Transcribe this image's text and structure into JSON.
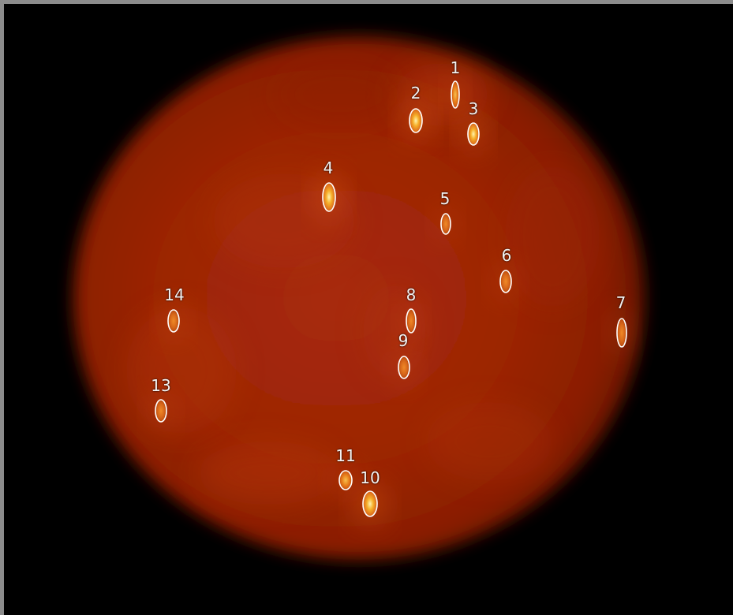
{
  "image": {
    "subject": "thermal-disk",
    "colors": {
      "background": "#000000",
      "frame": "#8c8c8c",
      "disk_center": "#a82a08",
      "disk_mid": "#9a2306",
      "disk_edge": "#6a1504",
      "hotspot_core": "#fff2a0",
      "hotspot_mid": "#f2a020",
      "hotspot_outer": "#d85a10",
      "outline": "#ffffff",
      "label": "#f2f2f2"
    }
  },
  "hotspots": [
    {
      "label": "1",
      "intensity": "medium"
    },
    {
      "label": "2",
      "intensity": "high"
    },
    {
      "label": "3",
      "intensity": "high"
    },
    {
      "label": "4",
      "intensity": "high"
    },
    {
      "label": "5",
      "intensity": "low"
    },
    {
      "label": "6",
      "intensity": "low"
    },
    {
      "label": "7",
      "intensity": "low"
    },
    {
      "label": "8",
      "intensity": "low"
    },
    {
      "label": "9",
      "intensity": "low"
    },
    {
      "label": "10",
      "intensity": "high"
    },
    {
      "label": "11",
      "intensity": "medium"
    },
    {
      "label": "13",
      "intensity": "low"
    },
    {
      "label": "14",
      "intensity": "low"
    }
  ]
}
